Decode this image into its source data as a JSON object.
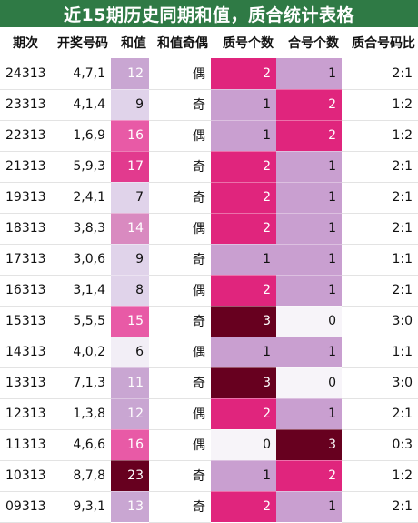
{
  "title": "近15期历史同期和值，质合统计表格",
  "headers": [
    "期次",
    "开奖号码",
    "和值",
    "和值奇偶",
    "质号个数",
    "合号个数",
    "质合号码比"
  ],
  "colors": {
    "header_bg": "#2f7a45",
    "sum_scale": [
      "#f2eef6",
      "#e0d3ea",
      "#c9a6d2",
      "#d98ac0",
      "#e85aa6",
      "#e23a8e",
      "#67001f"
    ],
    "count_scale": {
      "0": "#f7f4f9",
      "1": "#c99fd0",
      "2": "#e0257d",
      "3": "#67001f"
    }
  },
  "chart_data": {
    "type": "table",
    "title": "近15期历史同期和值，质合统计表格",
    "columns": [
      "期次",
      "开奖号码",
      "和值",
      "和值奇偶",
      "质号个数",
      "合号个数",
      "质合号码比"
    ],
    "rows": [
      [
        "24313",
        "4,7,1",
        12,
        "偶",
        2,
        1,
        "2:1"
      ],
      [
        "23313",
        "4,1,4",
        9,
        "奇",
        1,
        2,
        "1:2"
      ],
      [
        "22313",
        "1,6,9",
        16,
        "偶",
        1,
        2,
        "1:2"
      ],
      [
        "21313",
        "5,9,3",
        17,
        "奇",
        2,
        1,
        "2:1"
      ],
      [
        "19313",
        "2,4,1",
        7,
        "奇",
        2,
        1,
        "2:1"
      ],
      [
        "18313",
        "3,8,3",
        14,
        "偶",
        2,
        1,
        "2:1"
      ],
      [
        "17313",
        "3,0,6",
        9,
        "奇",
        1,
        1,
        "1:1"
      ],
      [
        "16313",
        "3,1,4",
        8,
        "偶",
        2,
        1,
        "2:1"
      ],
      [
        "15313",
        "5,5,5",
        15,
        "奇",
        3,
        0,
        "3:0"
      ],
      [
        "14313",
        "4,0,2",
        6,
        "偶",
        1,
        1,
        "1:1"
      ],
      [
        "13313",
        "7,1,3",
        11,
        "奇",
        3,
        0,
        "3:0"
      ],
      [
        "12313",
        "1,3,8",
        12,
        "偶",
        2,
        1,
        "2:1"
      ],
      [
        "11313",
        "4,6,6",
        16,
        "偶",
        0,
        3,
        "0:3"
      ],
      [
        "10313",
        "8,7,8",
        23,
        "奇",
        1,
        2,
        "1:2"
      ],
      [
        "09313",
        "9,3,1",
        13,
        "奇",
        2,
        1,
        "2:1"
      ]
    ]
  }
}
